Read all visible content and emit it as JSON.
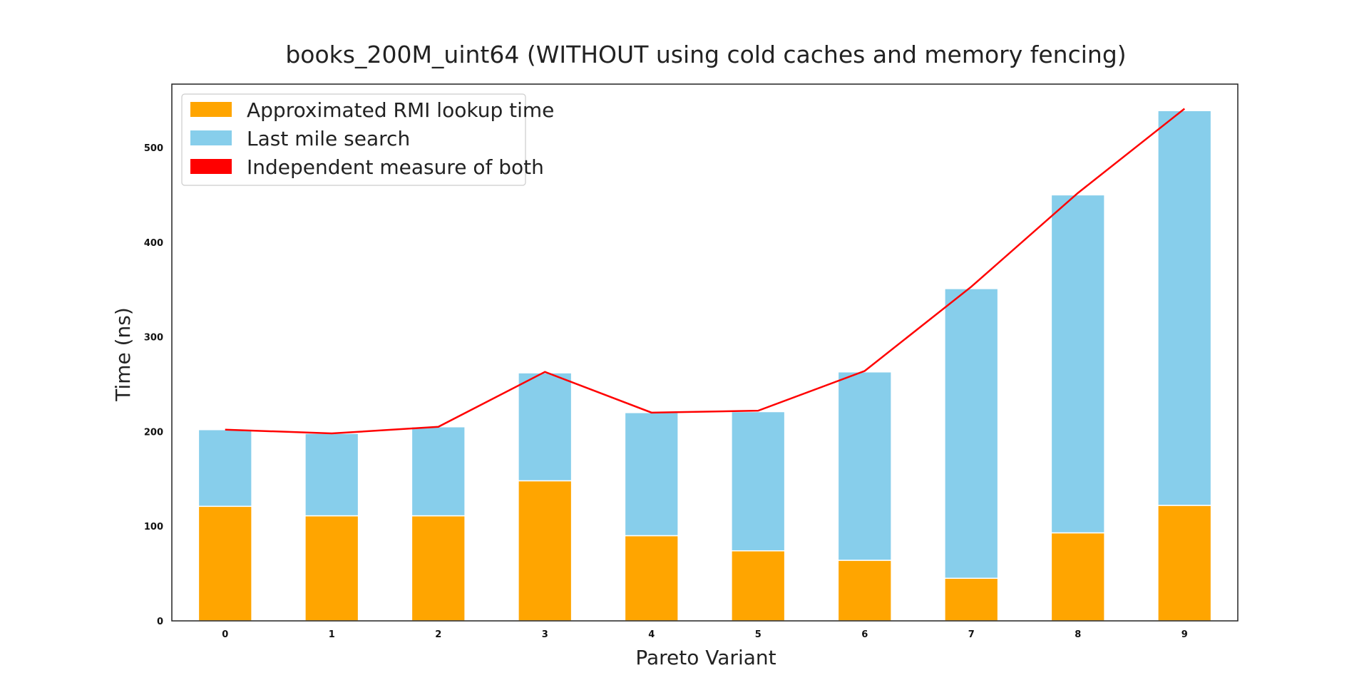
{
  "chart_data": {
    "type": "bar",
    "stacked": true,
    "title": "books_200M_uint64 (WITHOUT using cold caches and memory fencing)",
    "xlabel": "Pareto Variant",
    "ylabel": "Time (ns)",
    "categories": [
      "0",
      "1",
      "2",
      "3",
      "4",
      "5",
      "6",
      "7",
      "8",
      "9"
    ],
    "ylim": [
      0,
      567
    ],
    "yticks": [
      0,
      100,
      200,
      300,
      400,
      500
    ],
    "ytick_labels": [
      "0",
      "100",
      "200",
      "300",
      "400",
      "500"
    ],
    "grid": false,
    "legend_position": "top-left",
    "series": [
      {
        "name": "Approximated RMI lookup time",
        "kind": "bar",
        "color": "#FFA500",
        "values": [
          121,
          111,
          111,
          148,
          90,
          74,
          64,
          45,
          93,
          122
        ]
      },
      {
        "name": "Last mile search",
        "kind": "bar",
        "color": "#87CEEB",
        "values": [
          81,
          87,
          94,
          114,
          130,
          147,
          199,
          306,
          357,
          417
        ]
      },
      {
        "name": "Independent measure of both",
        "kind": "line",
        "color": "#FF0000",
        "values": [
          202,
          198,
          205,
          263,
          220,
          222,
          264,
          353,
          452,
          541
        ]
      }
    ]
  }
}
